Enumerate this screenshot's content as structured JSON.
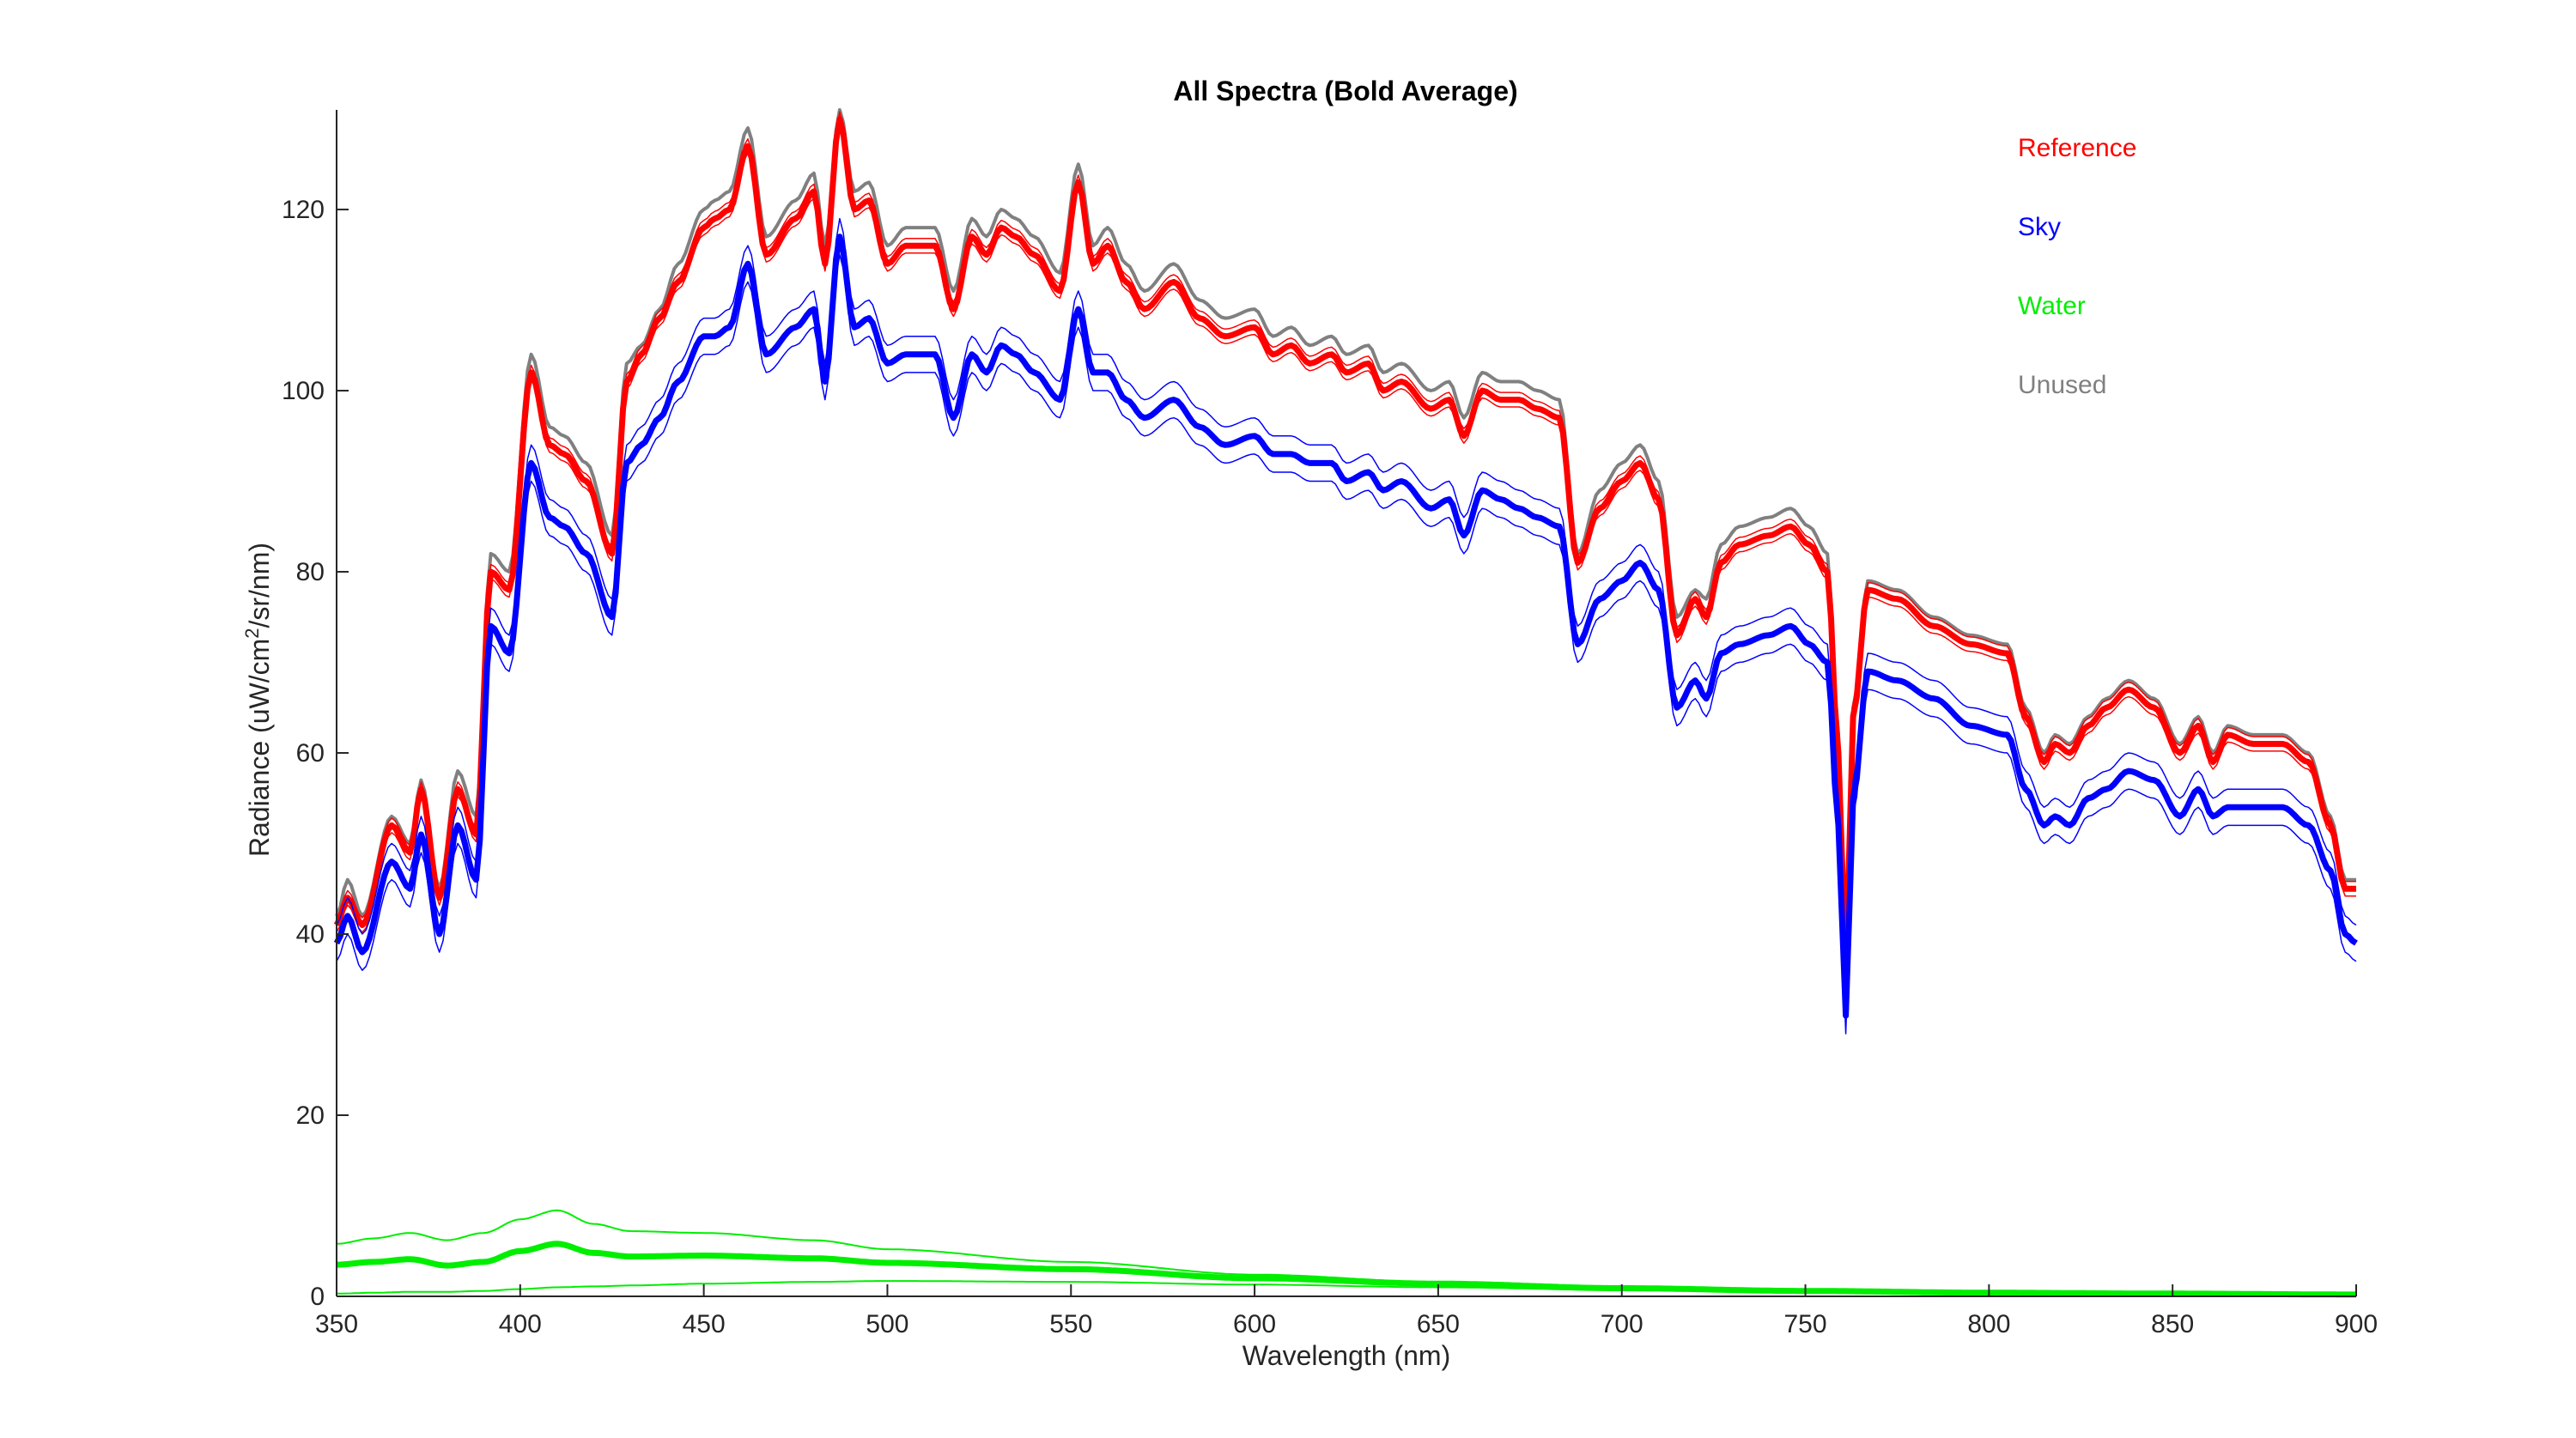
{
  "chart_data": {
    "type": "line",
    "title": "All Spectra (Bold Average)",
    "xlabel": "Wavelength (nm)",
    "ylabel_parts": [
      "Radiance (uW/cm",
      "2",
      "/sr/nm)"
    ],
    "xlim": [
      350,
      900
    ],
    "ylim": [
      0,
      131
    ],
    "xticks": [
      350,
      400,
      450,
      500,
      550,
      600,
      650,
      700,
      750,
      800,
      850,
      900
    ],
    "yticks": [
      0,
      20,
      40,
      60,
      80,
      100,
      120
    ],
    "legend_position": "top-right",
    "legend": [
      {
        "label": "Reference",
        "color": "#ff0000"
      },
      {
        "label": "Sky",
        "color": "#0000ff"
      },
      {
        "label": "Water",
        "color": "#00ee00"
      },
      {
        "label": "Unused",
        "color": "#808080"
      }
    ],
    "anchors": {
      "x": [
        350,
        353,
        357,
        365,
        370,
        373,
        378,
        383,
        388,
        392,
        397,
        403,
        408,
        412,
        418,
        425,
        429,
        433,
        438,
        443,
        450,
        453,
        457,
        462,
        467,
        475,
        480,
        483,
        487,
        491,
        495,
        500,
        505,
        513,
        518,
        523,
        527,
        531,
        535,
        540,
        547,
        552,
        556,
        560,
        565,
        570,
        578,
        585,
        592,
        600,
        605,
        610,
        615,
        621,
        625,
        631,
        635,
        640,
        648,
        653,
        657,
        662,
        667,
        672,
        677,
        683,
        688,
        694,
        700,
        705,
        710,
        715,
        720,
        723,
        727,
        732,
        740,
        746,
        751,
        756,
        759,
        761,
        763,
        767,
        775,
        785,
        795,
        805,
        810,
        815,
        818,
        822,
        827,
        832,
        838,
        845,
        852,
        857,
        861,
        865,
        872,
        880,
        887,
        893,
        897,
        900
      ],
      "unused": [
        42,
        46,
        42,
        53,
        50,
        57,
        45,
        58,
        53,
        82,
        80,
        104,
        96,
        95,
        92,
        84,
        103,
        105,
        109,
        114,
        120,
        121,
        122,
        129,
        117,
        121,
        124,
        116,
        131,
        122,
        123,
        116,
        118,
        118,
        111,
        119,
        117,
        120,
        119,
        117,
        113,
        125,
        116,
        118,
        114,
        111,
        114,
        110,
        108,
        109,
        106,
        107,
        105,
        106,
        104,
        105,
        102,
        103,
        100,
        101,
        97,
        102,
        101,
        101,
        100,
        99,
        82,
        89,
        92,
        94,
        90,
        75,
        78,
        77,
        83,
        85,
        86,
        87,
        85,
        82,
        62,
        37,
        65,
        79,
        78,
        75,
        73,
        72,
        65,
        60,
        62,
        61,
        64,
        66,
        68,
        66,
        61,
        64,
        60,
        63,
        62,
        62,
        60,
        53,
        46,
        46
      ],
      "ref": [
        41,
        44,
        41,
        52,
        49,
        56,
        44,
        56,
        51,
        80,
        78,
        102,
        94,
        93,
        90,
        82,
        101,
        104,
        108,
        112,
        118,
        119,
        120,
        127,
        115,
        119,
        122,
        114,
        130,
        120,
        121,
        114,
        116,
        116,
        109,
        117,
        115,
        118,
        117,
        115,
        111,
        123,
        114,
        116,
        112,
        109,
        112,
        108,
        106,
        107,
        104,
        105,
        103,
        104,
        102,
        103,
        100,
        101,
        98,
        99,
        95,
        100,
        99,
        99,
        98,
        97,
        81,
        87,
        90,
        92,
        88,
        73,
        77,
        75,
        81,
        83,
        84,
        85,
        83,
        80,
        60,
        36,
        64,
        78,
        77,
        74,
        72,
        71,
        64,
        59,
        61,
        60,
        63,
        65,
        67,
        65,
        60,
        63,
        59,
        62,
        61,
        61,
        59,
        52,
        45,
        45
      ],
      "sky": [
        39,
        42,
        38,
        48,
        45,
        51,
        40,
        52,
        46,
        74,
        71,
        92,
        86,
        85,
        82,
        75,
        92,
        94,
        97,
        101,
        106,
        106,
        107,
        114,
        104,
        107,
        109,
        101,
        117,
        107,
        108,
        103,
        104,
        104,
        97,
        104,
        102,
        105,
        104,
        102,
        99,
        109,
        102,
        102,
        99,
        97,
        99,
        96,
        94,
        95,
        93,
        93,
        92,
        92,
        90,
        91,
        89,
        90,
        87,
        88,
        84,
        89,
        88,
        87,
        86,
        85,
        72,
        77,
        79,
        81,
        78,
        65,
        68,
        66,
        71,
        72,
        73,
        74,
        72,
        70,
        52,
        31,
        55,
        69,
        68,
        66,
        63,
        62,
        56,
        52,
        53,
        52,
        55,
        56,
        58,
        57,
        53,
        56,
        53,
        54,
        54,
        54,
        52,
        47,
        40,
        39
      ]
    },
    "water_anchors": {
      "x": [
        350,
        360,
        370,
        380,
        390,
        400,
        410,
        420,
        430,
        450,
        480,
        500,
        550,
        600,
        650,
        700,
        750,
        800,
        850,
        900
      ],
      "mean": [
        3.5,
        3.8,
        4.1,
        3.4,
        3.8,
        5.0,
        5.8,
        4.8,
        4.4,
        4.5,
        4.2,
        3.7,
        3.0,
        2.0,
        1.4,
        0.9,
        0.6,
        0.4,
        0.3,
        0.2
      ],
      "upper": [
        5.8,
        6.4,
        7.0,
        6.2,
        7.0,
        8.5,
        9.5,
        8.0,
        7.2,
        7.0,
        6.2,
        5.2,
        3.8,
        2.4,
        1.6,
        1.0,
        0.7,
        0.5,
        0.4,
        0.3
      ],
      "lower": [
        0.3,
        0.4,
        0.5,
        0.5,
        0.6,
        0.8,
        1.0,
        1.1,
        1.2,
        1.4,
        1.6,
        1.7,
        1.6,
        1.3,
        1.0,
        0.7,
        0.5,
        0.3,
        0.2,
        0.1
      ]
    }
  }
}
